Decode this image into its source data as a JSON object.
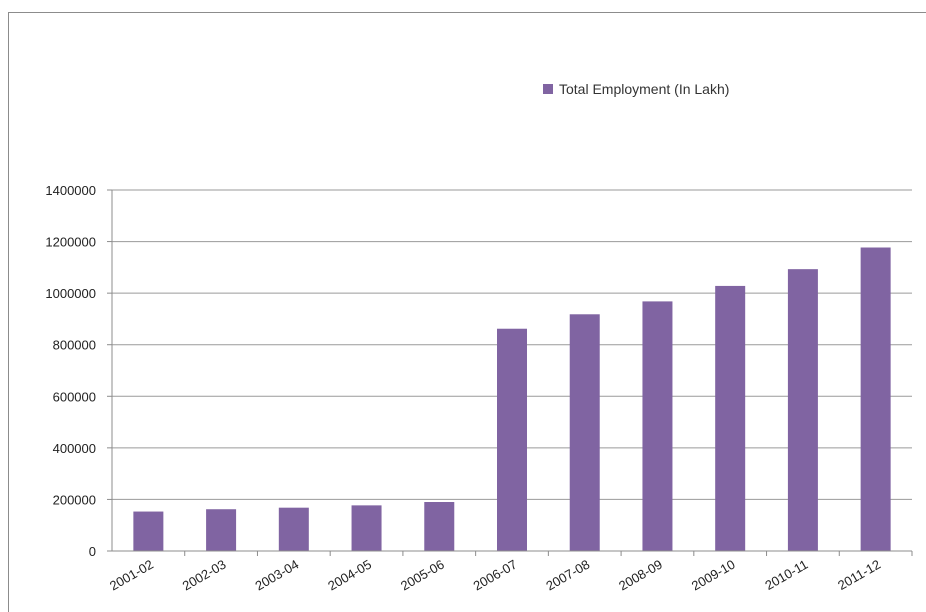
{
  "chart_data": {
    "type": "bar",
    "categories": [
      "2001-02",
      "2002-03",
      "2003-04",
      "2004-05",
      "2005-06",
      "2006-07",
      "2007-08",
      "2008-09",
      "2009-10",
      "2010-11",
      "2011-12"
    ],
    "series": [
      {
        "name": "Total Employment (In Lakh)",
        "values": [
          153000,
          162000,
          168000,
          177000,
          190000,
          862000,
          918000,
          968000,
          1028000,
          1093000,
          1177000
        ],
        "color": "#8064a2"
      }
    ],
    "title": "",
    "xlabel": "",
    "ylabel": "",
    "ylim": [
      0,
      1400000
    ],
    "yticks": [
      "0",
      "200000",
      "400000",
      "600000",
      "800000",
      "1000000",
      "1200000",
      "1400000"
    ],
    "grid": true,
    "legend_position": "top-right"
  }
}
